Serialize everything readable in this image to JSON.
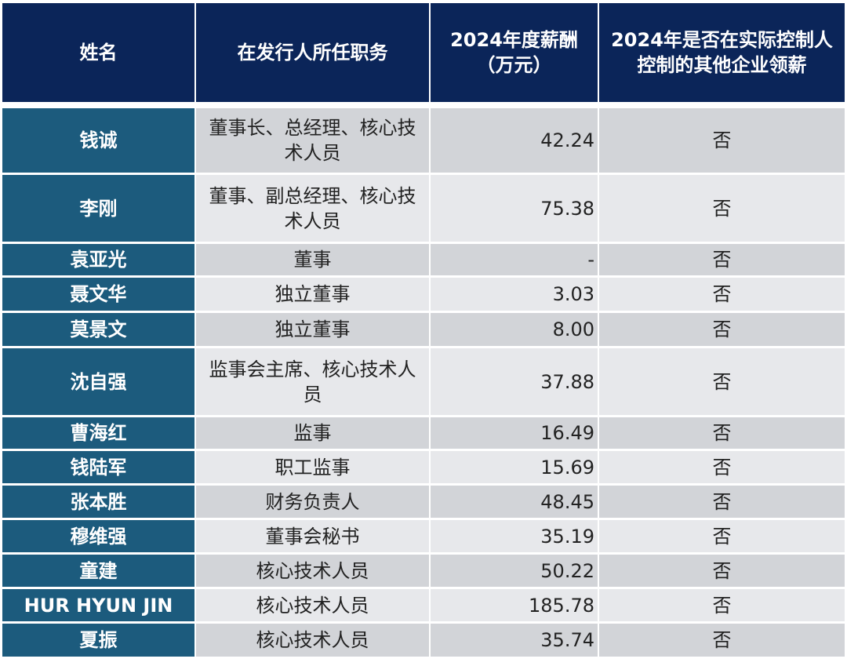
{
  "table": {
    "header": [
      "姓名",
      "在发行人所任职务",
      "2024年度薪酬（万元）",
      "2024年是否在实际控制人控制的其他企业领薪"
    ],
    "rows": [
      [
        "钱诚",
        "董事长、总经理、核心技术人员",
        "42.24",
        "否"
      ],
      [
        "李刚",
        "董事、副总经理、核心技术人员",
        "75.38",
        "否"
      ],
      [
        "袁亚光",
        "董事",
        "-",
        "否"
      ],
      [
        "聂文华",
        "独立董事",
        "3.03",
        "否"
      ],
      [
        "莫景文",
        "独立董事",
        "8.00",
        "否"
      ],
      [
        "沈自强",
        "监事会主席、核心技术人员",
        "37.88",
        "否"
      ],
      [
        "曹海红",
        "监事",
        "16.49",
        "否"
      ],
      [
        "钱陆军",
        "职工监事",
        "15.69",
        "否"
      ],
      [
        "张本胜",
        "财务负责人",
        "48.45",
        "否"
      ],
      [
        "穆维强",
        "董事会秘书",
        "35.19",
        "否"
      ],
      [
        "童建",
        "核心技术人员",
        "50.22",
        "否"
      ],
      [
        "HUR HYUN JIN",
        "核心技术人员",
        "185.78",
        "否"
      ],
      [
        "夏振",
        "核心技术人员",
        "35.74",
        "否"
      ]
    ]
  }
}
